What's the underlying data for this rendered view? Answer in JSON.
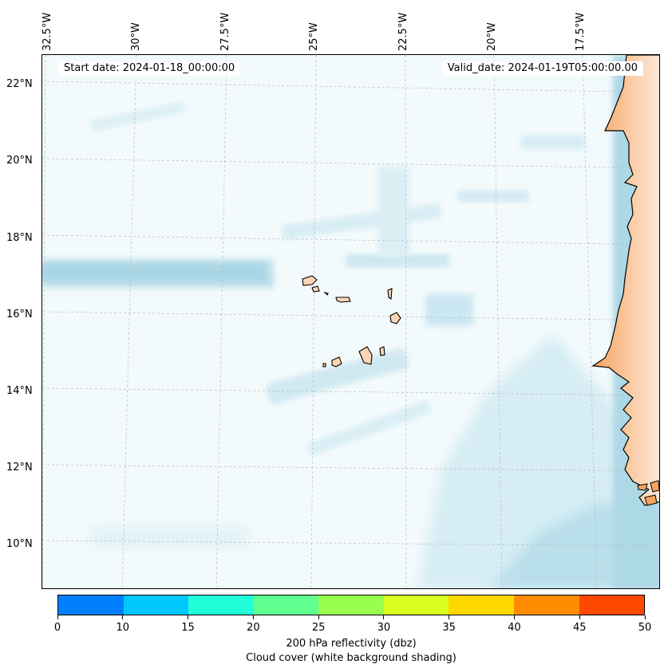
{
  "map": {
    "start_date": "Start date: 2024-01-18_00:00:00",
    "valid_date": "Valid_date: 2024-01-19T05:00:00.00",
    "lon_labels": [
      "32.5°W",
      "30°W",
      "27.5°W",
      "25°W",
      "22.5°W",
      "20°W",
      "17.5°W"
    ],
    "lat_labels": [
      "22°N",
      "20°N",
      "18°N",
      "16°N",
      "14°N",
      "12°N",
      "10°N"
    ],
    "cloud_color": "#add8e6",
    "land_color": "#f4a460"
  },
  "colorbar": {
    "ticks": [
      "0",
      "10",
      "15",
      "20",
      "25",
      "30",
      "35",
      "40",
      "45",
      "50"
    ],
    "colors": [
      "#0080ff",
      "#00c8ff",
      "#20ffd8",
      "#60ff90",
      "#98ff50",
      "#d8ff20",
      "#ffd800",
      "#ff8c00",
      "#ff4800"
    ],
    "title": "200 hPa reflectivity (dbz)",
    "subtitle": "Cloud cover (white background shading)"
  }
}
